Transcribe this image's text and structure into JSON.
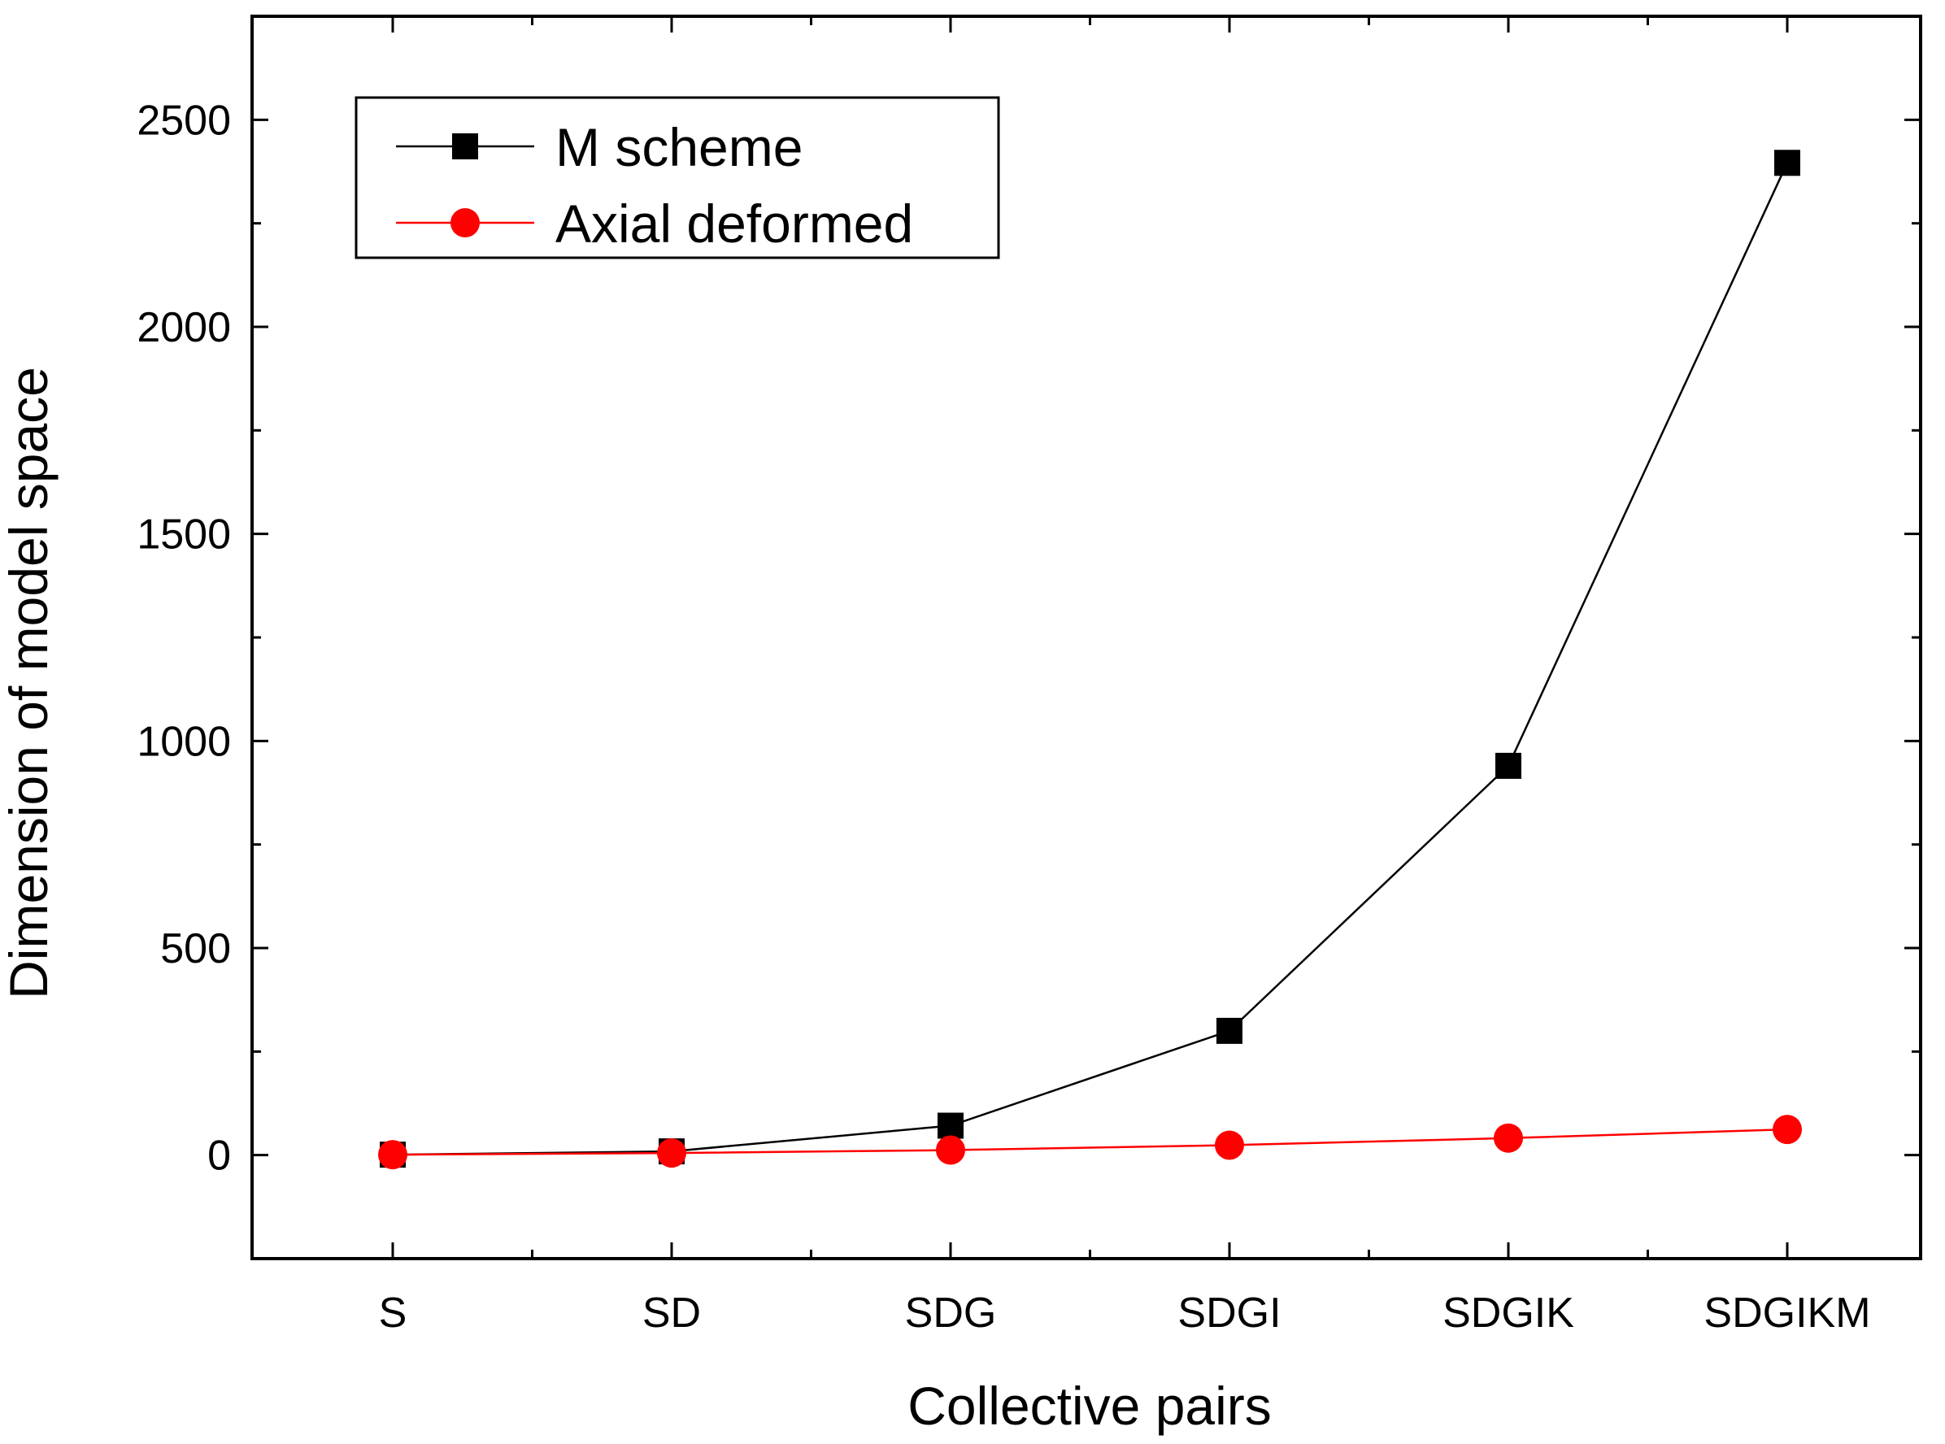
{
  "chart_data": {
    "type": "line",
    "title": "",
    "xlabel": "Collective pairs",
    "ylabel": "Dimension of model space",
    "categories": [
      "S",
      "SD",
      "SDG",
      "SDGI",
      "SDGIK",
      "SDGIKM"
    ],
    "ylim": [
      -250,
      2750
    ],
    "yticks": [
      0,
      500,
      1000,
      1500,
      2000,
      2500
    ],
    "grid": false,
    "legend_position": "top-left",
    "series": [
      {
        "name": "M scheme",
        "color": "#000000",
        "marker": "square",
        "values": [
          1,
          9,
          71,
          300,
          940,
          2396
        ]
      },
      {
        "name": "Axial deformed",
        "color": "#ff0000",
        "marker": "circle",
        "values": [
          1,
          5,
          12,
          24,
          41,
          62
        ]
      }
    ]
  }
}
